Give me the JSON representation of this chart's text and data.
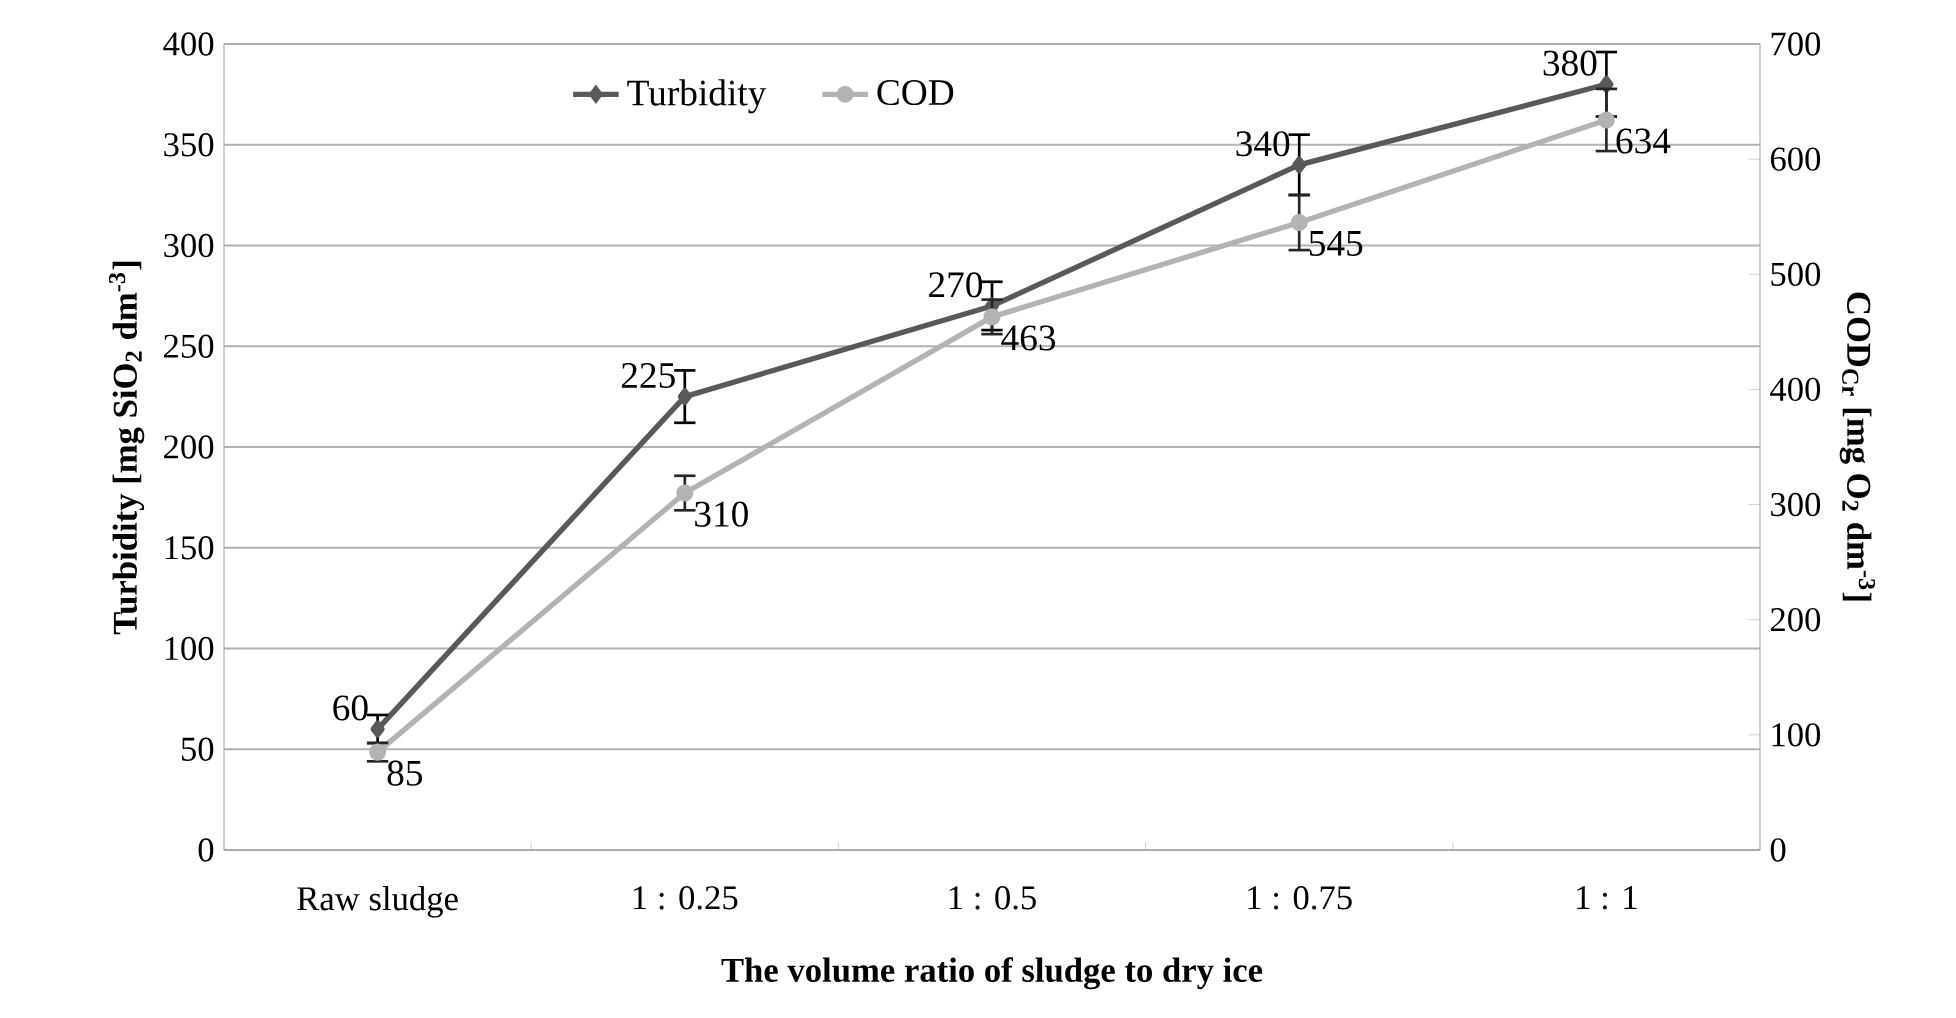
{
  "chart_data": {
    "type": "line",
    "xlabel": "The volume ratio of sludge to dry ice",
    "ylabel": "Turbidity [mg SiO$_{2}$ dm$^{-3}$]",
    "y2label": "COD$_{Cr}$ [mg O$_{2}$ dm$^{-3}$]",
    "categories": [
      "Raw sludge",
      "1 : 0.25",
      "1 : 0.5",
      "1 : 0.75",
      "1 : 1"
    ],
    "series": [
      {
        "name": "Turbidity",
        "color": "#595959",
        "marker": "diamond",
        "values": [
          60,
          225,
          270,
          340,
          380
        ],
        "errors": [
          7,
          13,
          12,
          15,
          16
        ]
      },
      {
        "name": "COD",
        "color": "#b3b3b3",
        "marker": "circle",
        "axis": "y2",
        "values": [
          85,
          310,
          463,
          545,
          634
        ],
        "errors": [
          8,
          15,
          15,
          24,
          27
        ]
      }
    ],
    "ylim": [
      0,
      400
    ],
    "yticks": [
      0,
      50,
      100,
      150,
      200,
      250,
      300,
      350,
      400
    ],
    "y2lim": [
      0,
      700
    ],
    "y2ticks": [
      0,
      100,
      200,
      300,
      400,
      500,
      600,
      700
    ],
    "grid": "y",
    "legend": "top left",
    "data_labels": true,
    "line_style": "solid"
  }
}
